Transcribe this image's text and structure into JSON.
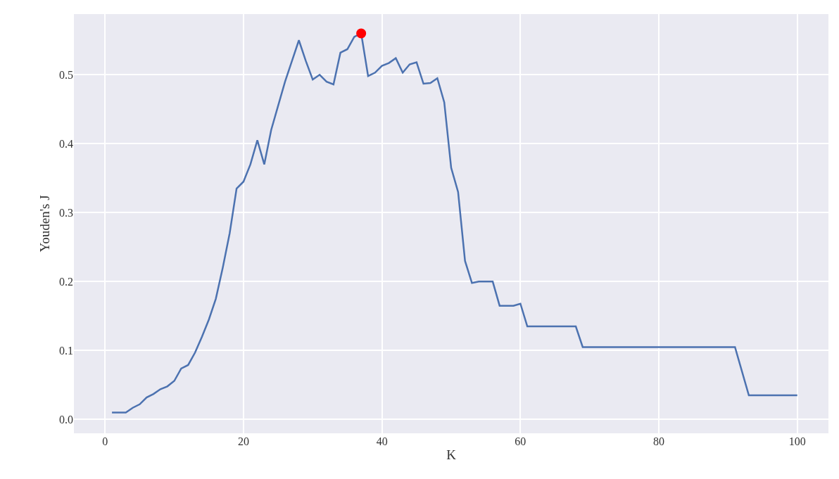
{
  "chart_data": {
    "type": "line",
    "xlabel": "K",
    "ylabel": "Youden's J",
    "xlim": [
      -4.5,
      104.5
    ],
    "xticks": [
      0,
      20,
      40,
      60,
      80,
      100
    ],
    "ylim": [
      -0.02,
      0.588
    ],
    "yticks": [
      {
        "value": 0,
        "label": "0.0"
      },
      0.1,
      0.2,
      0.3,
      0.4,
      0.5
    ],
    "grid": true,
    "series": [
      {
        "color": "#4c72b0",
        "marker": "none",
        "line_style": "solid",
        "x": [
          1,
          2,
          3,
          4,
          5,
          6,
          7,
          8,
          9,
          10,
          11,
          12,
          13,
          14,
          15,
          16,
          17,
          18,
          19,
          20,
          21,
          22,
          23,
          24,
          25,
          26,
          27,
          28,
          29,
          30,
          31,
          32,
          33,
          34,
          35,
          36,
          37,
          38,
          39,
          40,
          41,
          42,
          43,
          44,
          45,
          46,
          47,
          48,
          49,
          50,
          51,
          52,
          53,
          54,
          55,
          56,
          57,
          58,
          59,
          60,
          61,
          68,
          69,
          91,
          93,
          100
        ],
        "values": [
          0.01,
          0.01,
          0.01,
          0.017,
          0.022,
          0.032,
          0.037,
          0.044,
          0.048,
          0.056,
          0.074,
          0.079,
          0.097,
          0.12,
          0.145,
          0.175,
          0.22,
          0.27,
          0.335,
          0.345,
          0.37,
          0.405,
          0.37,
          0.42,
          0.455,
          0.49,
          0.52,
          0.55,
          0.52,
          0.493,
          0.5,
          0.49,
          0.486,
          0.532,
          0.537,
          0.555,
          0.56,
          0.498,
          0.503,
          0.513,
          0.517,
          0.524,
          0.503,
          0.515,
          0.518,
          0.487,
          0.488,
          0.495,
          0.46,
          0.365,
          0.33,
          0.23,
          0.198,
          0.2,
          0.2,
          0.2,
          0.165,
          0.165,
          0.165,
          0.168,
          0.135,
          0.135,
          0.105,
          0.105,
          0.035,
          0.035
        ]
      },
      {
        "type": "scatter",
        "color": "#ff0000",
        "marker": "circle",
        "x": [
          37
        ],
        "values": [
          0.56
        ]
      }
    ]
  }
}
